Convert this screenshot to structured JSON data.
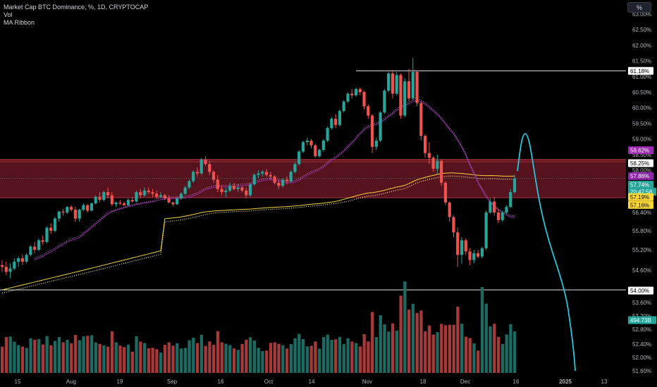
{
  "legend": {
    "symbol_line": "Market Cap BTC Dominance, %, 1D, CRYPTOCAP",
    "vol_label": "Vol",
    "ma_label": "MA Ribbon"
  },
  "unit_button": "%",
  "colors": {
    "up": "#26a69a",
    "down": "#ef5350",
    "vol_up": "#1c6b63",
    "vol_down": "#a8393a",
    "ma_fast": "#9c27b0",
    "ma_slow": "#f5d23b",
    "projection": "#26c6da",
    "zone": "#5b1420",
    "zone_line": "#d3414a",
    "level_line": "#e0e3eb"
  },
  "axis": {
    "y_ticks": [
      "63.00%",
      "62.50%",
      "62.00%",
      "61.50%",
      "61.00%",
      "60.50%",
      "60.00%",
      "59.50%",
      "59.00%",
      "58.50%",
      "58.00%",
      "57.50%",
      "57.00%",
      "56.40%",
      "55.80%",
      "55.20%",
      "54.60%",
      "54.00%",
      "53.60%",
      "53.20%",
      "52.80%",
      "52.40%",
      "52.00%",
      "51.60%"
    ],
    "x_ticks": [
      "15",
      "Aug",
      "19",
      "Sep",
      "16",
      "Oct",
      "14",
      "Nov",
      "18",
      "Dec",
      "16",
      "2025",
      "13"
    ]
  },
  "badges": {
    "resistance": "61.18%",
    "ma_fast_value": "58.62%",
    "zone_top": "58.25%",
    "ma_slow_value": "57.86%",
    "price": "57.74%",
    "countdown": "20:47:58",
    "zone_bottom_1": "57.19%",
    "zone_bottom_2": "57.16%",
    "support": "54.00%",
    "volume": "494.73B"
  },
  "chart_data": {
    "type": "candlestick",
    "title": "Market Cap BTC Dominance, %, 1D, CRYPTOCAP",
    "interval": "1D",
    "x_range": [
      "2024-07-15",
      "2025-01-13"
    ],
    "last_close": 57.74,
    "candles_ohlc": [
      [
        54.75,
        54.9,
        54.55,
        54.7
      ],
      [
        54.7,
        54.85,
        54.45,
        54.55
      ],
      [
        54.55,
        54.8,
        54.35,
        54.65
      ],
      [
        54.65,
        54.95,
        54.6,
        54.85
      ],
      [
        54.85,
        55.0,
        54.7,
        54.95
      ],
      [
        54.95,
        55.05,
        54.75,
        54.85
      ],
      [
        54.85,
        55.1,
        54.8,
        55.05
      ],
      [
        55.05,
        55.35,
        55.0,
        55.3
      ],
      [
        55.3,
        55.45,
        55.1,
        55.2
      ],
      [
        55.2,
        55.55,
        55.15,
        55.5
      ],
      [
        55.5,
        55.65,
        55.35,
        55.45
      ],
      [
        55.45,
        55.95,
        55.4,
        55.9
      ],
      [
        55.9,
        56.05,
        55.7,
        55.8
      ],
      [
        55.8,
        56.25,
        55.75,
        56.2
      ],
      [
        56.2,
        56.5,
        56.1,
        56.45
      ],
      [
        56.45,
        56.6,
        56.3,
        56.4
      ],
      [
        56.4,
        56.75,
        56.35,
        56.7
      ],
      [
        56.7,
        56.8,
        56.45,
        56.55
      ],
      [
        56.55,
        56.7,
        56.1,
        56.2
      ],
      [
        56.2,
        56.6,
        56.1,
        56.55
      ],
      [
        56.55,
        56.9,
        56.5,
        56.8
      ],
      [
        56.8,
        56.85,
        56.4,
        56.5
      ],
      [
        56.5,
        56.95,
        56.45,
        56.9
      ],
      [
        56.9,
        57.2,
        56.85,
        57.15
      ],
      [
        57.15,
        57.3,
        56.95,
        57.05
      ],
      [
        57.05,
        57.35,
        57.0,
        57.3
      ],
      [
        57.3,
        57.45,
        57.1,
        57.2
      ],
      [
        57.2,
        57.3,
        56.75,
        56.85
      ],
      [
        56.85,
        57.0,
        56.7,
        56.95
      ],
      [
        56.95,
        57.05,
        56.8,
        56.9
      ],
      [
        56.9,
        57.0,
        56.75,
        56.8
      ],
      [
        56.8,
        57.1,
        56.75,
        57.05
      ],
      [
        57.05,
        57.15,
        56.95,
        57.0
      ],
      [
        57.0,
        57.35,
        56.95,
        57.3
      ],
      [
        57.3,
        57.4,
        57.1,
        57.2
      ],
      [
        57.2,
        57.45,
        57.15,
        57.35
      ],
      [
        57.35,
        57.45,
        57.25,
        57.3
      ],
      [
        57.3,
        57.4,
        57.15,
        57.25
      ],
      [
        57.25,
        57.35,
        57.1,
        57.15
      ],
      [
        57.15,
        57.3,
        57.1,
        57.2
      ],
      [
        57.2,
        57.25,
        57.05,
        57.1
      ],
      [
        57.1,
        57.2,
        56.9,
        56.95
      ],
      [
        56.95,
        57.0,
        56.75,
        56.85
      ],
      [
        56.85,
        57.15,
        56.8,
        57.1
      ],
      [
        57.1,
        57.3,
        57.05,
        57.25
      ],
      [
        57.25,
        57.5,
        57.2,
        57.45
      ],
      [
        57.45,
        57.7,
        57.4,
        57.65
      ],
      [
        57.65,
        58.0,
        57.6,
        57.95
      ],
      [
        57.95,
        58.1,
        57.8,
        57.9
      ],
      [
        57.9,
        58.4,
        57.85,
        58.35
      ],
      [
        58.35,
        58.45,
        58.15,
        58.2
      ],
      [
        58.2,
        58.3,
        57.85,
        57.95
      ],
      [
        57.95,
        58.0,
        57.6,
        57.7
      ],
      [
        57.7,
        57.85,
        57.3,
        57.4
      ],
      [
        57.4,
        57.5,
        57.2,
        57.3
      ],
      [
        57.3,
        57.45,
        57.15,
        57.35
      ],
      [
        57.35,
        57.6,
        57.3,
        57.5
      ],
      [
        57.5,
        57.6,
        57.35,
        57.4
      ],
      [
        57.4,
        57.55,
        57.3,
        57.45
      ],
      [
        57.45,
        57.5,
        57.3,
        57.35
      ],
      [
        57.35,
        57.45,
        57.1,
        57.2
      ],
      [
        57.2,
        57.6,
        57.15,
        57.55
      ],
      [
        57.55,
        57.9,
        57.5,
        57.85
      ],
      [
        57.85,
        58.0,
        57.75,
        57.9
      ],
      [
        57.9,
        58.0,
        57.8,
        57.95
      ],
      [
        57.95,
        58.05,
        57.8,
        57.85
      ],
      [
        57.85,
        57.95,
        57.7,
        57.8
      ],
      [
        57.8,
        57.85,
        57.55,
        57.6
      ],
      [
        57.6,
        57.7,
        57.4,
        57.5
      ],
      [
        57.5,
        57.75,
        57.45,
        57.7
      ],
      [
        57.7,
        57.8,
        57.55,
        57.65
      ],
      [
        57.65,
        58.0,
        57.6,
        57.95
      ],
      [
        57.95,
        58.25,
        57.9,
        58.2
      ],
      [
        58.2,
        58.65,
        58.15,
        58.6
      ],
      [
        58.6,
        58.95,
        58.55,
        58.9
      ],
      [
        58.9,
        59.05,
        58.8,
        58.95
      ],
      [
        58.95,
        59.0,
        58.7,
        58.8
      ],
      [
        58.8,
        58.85,
        58.4,
        58.45
      ],
      [
        58.45,
        58.7,
        58.4,
        58.65
      ],
      [
        58.65,
        59.0,
        58.6,
        58.95
      ],
      [
        58.95,
        59.4,
        58.9,
        59.35
      ],
      [
        59.35,
        59.7,
        59.3,
        59.65
      ],
      [
        59.65,
        59.8,
        59.35,
        59.45
      ],
      [
        59.45,
        59.95,
        59.4,
        59.9
      ],
      [
        59.9,
        60.25,
        59.85,
        60.2
      ],
      [
        60.2,
        60.5,
        60.15,
        60.45
      ],
      [
        60.45,
        60.6,
        60.3,
        60.4
      ],
      [
        60.4,
        60.65,
        60.35,
        60.6
      ],
      [
        60.6,
        60.65,
        60.4,
        60.5
      ],
      [
        60.5,
        60.55,
        59.95,
        60.05
      ],
      [
        60.05,
        60.1,
        59.65,
        59.75
      ],
      [
        59.75,
        59.8,
        58.55,
        58.75
      ],
      [
        58.75,
        59.05,
        58.65,
        58.95
      ],
      [
        58.95,
        59.9,
        58.9,
        59.85
      ],
      [
        59.85,
        60.6,
        59.8,
        60.55
      ],
      [
        60.55,
        61.15,
        60.5,
        61.1
      ],
      [
        61.1,
        61.2,
        60.3,
        60.45
      ],
      [
        60.45,
        61.15,
        60.4,
        61.05
      ],
      [
        61.05,
        61.1,
        59.65,
        59.75
      ],
      [
        59.75,
        60.95,
        59.7,
        60.85
      ],
      [
        60.85,
        61.25,
        60.2,
        60.3
      ],
      [
        60.3,
        61.6,
        60.25,
        61.15
      ],
      [
        61.15,
        61.2,
        60.05,
        60.15
      ],
      [
        60.15,
        60.2,
        58.95,
        59.1
      ],
      [
        59.1,
        59.15,
        58.4,
        58.55
      ],
      [
        58.55,
        58.9,
        58.2,
        58.4
      ],
      [
        58.4,
        58.45,
        57.95,
        58.05
      ],
      [
        58.05,
        58.5,
        57.9,
        58.3
      ],
      [
        58.3,
        58.35,
        57.5,
        57.6
      ],
      [
        57.6,
        57.65,
        56.8,
        56.95
      ],
      [
        56.95,
        57.0,
        56.1,
        56.25
      ],
      [
        56.25,
        56.3,
        55.6,
        55.75
      ],
      [
        55.75,
        55.9,
        54.7,
        55.05
      ],
      [
        55.05,
        55.6,
        54.8,
        55.5
      ],
      [
        55.5,
        55.55,
        55.05,
        55.15
      ],
      [
        55.15,
        55.25,
        54.75,
        54.9
      ],
      [
        54.9,
        55.2,
        54.8,
        55.1
      ],
      [
        55.1,
        55.2,
        54.95,
        55.0
      ],
      [
        55.0,
        55.3,
        54.95,
        55.25
      ],
      [
        55.25,
        56.5,
        55.2,
        56.4
      ],
      [
        56.4,
        57.1,
        56.35,
        57.0
      ],
      [
        57.0,
        57.15,
        56.3,
        56.4
      ],
      [
        56.4,
        56.6,
        56.05,
        56.15
      ],
      [
        56.15,
        56.5,
        56.1,
        56.4
      ],
      [
        56.4,
        56.8,
        56.35,
        56.7
      ],
      [
        56.7,
        57.4,
        56.65,
        57.3
      ],
      [
        57.3,
        57.85,
        57.25,
        57.74
      ]
    ],
    "volume_note": "Volume histogram below price; latest bar 494.73B",
    "ma_ribbon_latest": [
      58.62,
      57.86,
      57.19,
      57.16
    ],
    "levels": {
      "resistance": 61.18,
      "support": 54.0,
      "zone": [
        57.19,
        58.25
      ]
    },
    "projection_path": [
      [
        57.74,
        "2024-12-16"
      ],
      [
        58.95,
        "2024-12-19"
      ],
      [
        57.3,
        "2024-12-24"
      ],
      [
        55.0,
        "2024-12-30"
      ],
      [
        53.0,
        "2025-01-04"
      ],
      [
        51.6,
        "2025-01-09"
      ]
    ]
  }
}
